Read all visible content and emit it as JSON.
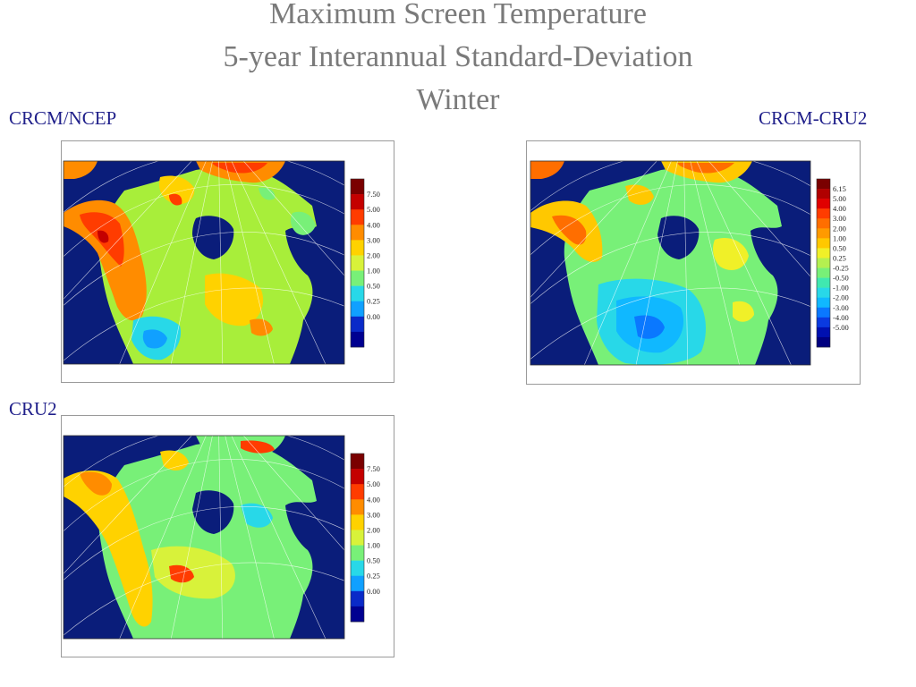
{
  "title": {
    "line1": "Maximum Screen Temperature",
    "line2": "5-year Interannual Standard-Deviation",
    "line3": "Winter"
  },
  "panels": [
    {
      "id": "crcm-ncep",
      "label": "CRCM/NCEP",
      "colorbar": {
        "labels": [
          "7.50",
          "5.00",
          "4.00",
          "3.00",
          "2.00",
          "1.00",
          "0.50",
          "0.25",
          "0.00",
          ""
        ],
        "colors": [
          "#7a0000",
          "#c40000",
          "#ff3c00",
          "#ff8c00",
          "#ffd200",
          "#d8f23a",
          "#78f078",
          "#28d8e8",
          "#10a0ff",
          "#0a2ac8",
          "#000090"
        ]
      }
    },
    {
      "id": "crcm-cru2",
      "label": "CRCM-CRU2",
      "colorbar": {
        "labels": [
          "6.15",
          "5.00",
          "4.00",
          "3.00",
          "2.00",
          "1.00",
          "0.50",
          "0.25",
          "-0.25",
          "-0.50",
          "-1.00",
          "-2.00",
          "-3.00",
          "-4.00",
          "-5.00",
          ""
        ],
        "colors": [
          "#7a0000",
          "#b00000",
          "#e00000",
          "#ff3c00",
          "#ff6e00",
          "#ff9a00",
          "#ffc800",
          "#f0f028",
          "#b4f050",
          "#78f078",
          "#40e8b0",
          "#28d8e8",
          "#10b8ff",
          "#0a78ff",
          "#0a3ae0",
          "#0010b0",
          "#000080"
        ]
      }
    },
    {
      "id": "cru2",
      "label": "CRU2",
      "colorbar": {
        "labels": [
          "7.50",
          "5.00",
          "4.00",
          "3.00",
          "2.00",
          "1.00",
          "0.50",
          "0.25",
          "0.00",
          ""
        ],
        "colors": [
          "#7a0000",
          "#c40000",
          "#ff3c00",
          "#ff8c00",
          "#ffd200",
          "#d8f23a",
          "#78f078",
          "#28d8e8",
          "#10a0ff",
          "#0a2ac8",
          "#000090"
        ]
      }
    }
  ],
  "colors": {
    "ocean": "#0a1d7a",
    "title_text": "#7a7a7a",
    "label_text": "#1f1f8a"
  }
}
